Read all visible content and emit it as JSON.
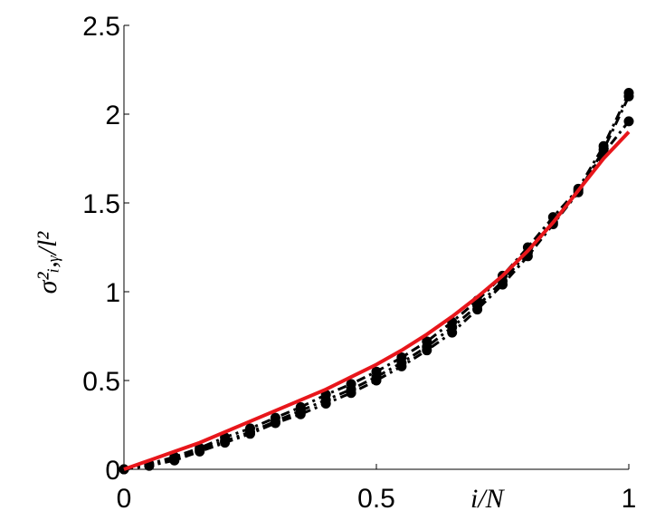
{
  "chart_data": {
    "type": "line",
    "xlabel": "i/N",
    "ylabel": "σ²ᵢ,ᵧ/l²",
    "x": [
      0,
      0.05,
      0.1,
      0.15,
      0.2,
      0.25,
      0.3,
      0.35,
      0.4,
      0.45,
      0.5,
      0.55,
      0.6,
      0.65,
      0.7,
      0.75,
      0.8,
      0.85,
      0.9,
      0.95,
      1
    ],
    "series": [
      {
        "color": "#000000",
        "linestyle": "dashed",
        "marker": "o",
        "values": [
          0,
          0.02,
          0.06,
          0.11,
          0.16,
          0.21,
          0.27,
          0.33,
          0.39,
          0.45,
          0.52,
          0.6,
          0.69,
          0.8,
          0.92,
          1.06,
          1.22,
          1.39,
          1.57,
          1.78,
          1.96
        ]
      },
      {
        "color": "#000000",
        "linestyle": "dashed",
        "marker": "o",
        "values": [
          0,
          0.03,
          0.07,
          0.12,
          0.18,
          0.23,
          0.29,
          0.35,
          0.42,
          0.48,
          0.55,
          0.63,
          0.72,
          0.83,
          0.95,
          1.09,
          1.25,
          1.42,
          1.58,
          1.82,
          2.12
        ]
      },
      {
        "color": "#000000",
        "linestyle": "dashed",
        "marker": "o",
        "values": [
          0,
          0.02,
          0.05,
          0.1,
          0.15,
          0.2,
          0.26,
          0.31,
          0.37,
          0.43,
          0.5,
          0.58,
          0.67,
          0.77,
          0.9,
          1.04,
          1.2,
          1.38,
          1.56,
          1.8,
          2.1
        ]
      },
      {
        "color": "#e8161b",
        "linestyle": "solid",
        "marker": "none",
        "values": [
          0,
          0.05,
          0.1,
          0.15,
          0.21,
          0.27,
          0.33,
          0.39,
          0.45,
          0.52,
          0.59,
          0.67,
          0.76,
          0.86,
          0.97,
          1.09,
          1.23,
          1.39,
          1.57,
          1.75,
          1.9
        ]
      }
    ],
    "xlim": [
      0,
      1
    ],
    "xticks": [
      0,
      0.5,
      1
    ],
    "ylim": [
      0,
      2.5
    ],
    "yticks": [
      0,
      0.5,
      1,
      1.5,
      2,
      2.5
    ]
  }
}
